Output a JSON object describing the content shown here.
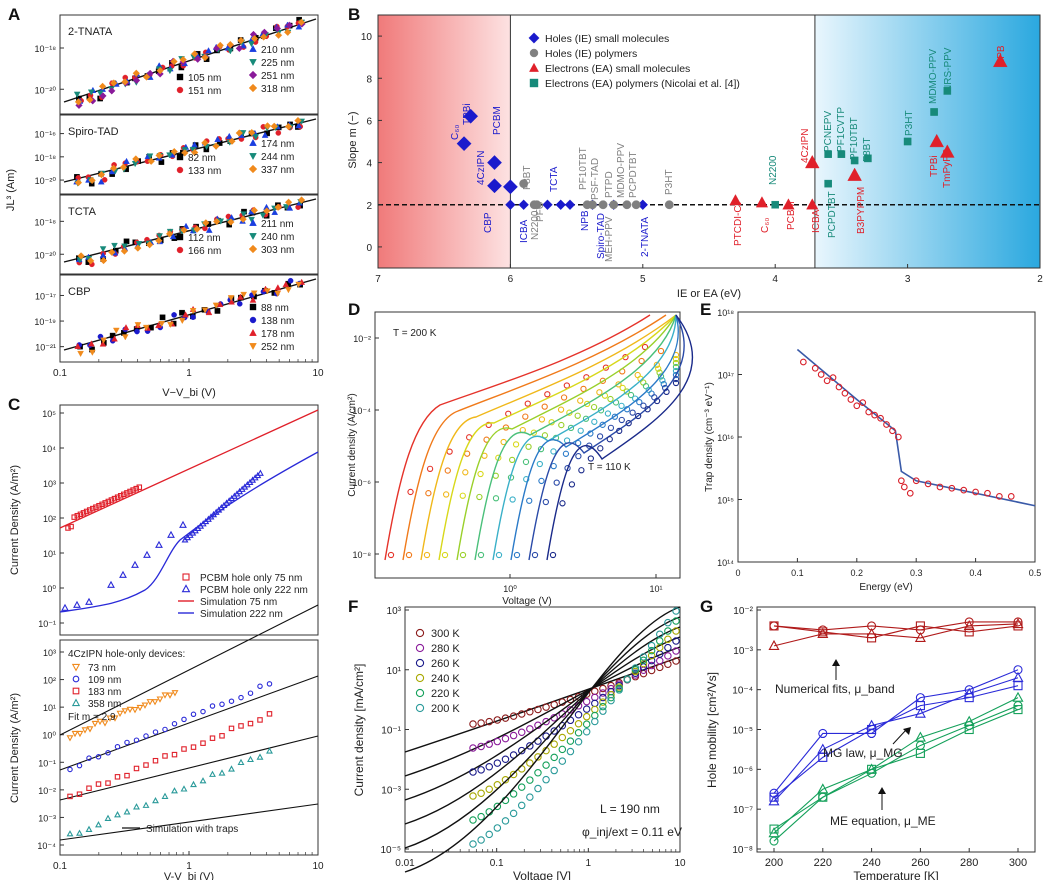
{
  "panels": {
    "A": "A",
    "B": "B",
    "C": "C",
    "D": "D",
    "E": "E",
    "F": "F",
    "G": "G"
  },
  "colors": {
    "blue": "#1a1acc",
    "red": "#e0202a",
    "teal": "#178a7a",
    "gray": "#808080",
    "orange": "#f08a1c",
    "purple": "#8a1a9a",
    "green": "#14a05a",
    "darkred": "#8b1a1a",
    "navy": "#1a1a8a",
    "olive": "#a8a800",
    "teal2": "#2a9a9a"
  },
  "chart_data": [
    {
      "id": "A",
      "type": "scatter",
      "ylabel": "JL³ (Am)",
      "xlabel": "V−V_bi (V)",
      "xlim": [
        0.1,
        10
      ],
      "xticks": [
        "0.1",
        "1",
        "10"
      ],
      "subplots": [
        {
          "name": "2-TNATA",
          "yticks": [
            "10⁻¹⁸",
            "10⁻²⁰"
          ],
          "legend": [
            {
              "label": "105 nm",
              "color": "#000000",
              "marker": "square"
            },
            {
              "label": "151 nm",
              "color": "#e0202a",
              "marker": "circle"
            },
            {
              "label": "210 nm",
              "color": "#1a3ee0",
              "marker": "triangle-up"
            },
            {
              "label": "225 nm",
              "color": "#178a7a",
              "marker": "triangle-down"
            },
            {
              "label": "251 nm",
              "color": "#8a1a9a",
              "marker": "diamond"
            },
            {
              "label": "318 nm",
              "color": "#f08a1c",
              "marker": "diamond"
            }
          ]
        },
        {
          "name": "Spiro-TAD",
          "yticks": [
            "10⁻¹⁶",
            "10⁻¹⁸",
            "10⁻²⁰"
          ],
          "legend": [
            {
              "label": "82 nm",
              "color": "#000000",
              "marker": "square"
            },
            {
              "label": "133 nm",
              "color": "#e0202a",
              "marker": "circle"
            },
            {
              "label": "174 nm",
              "color": "#1a3ee0",
              "marker": "triangle-up"
            },
            {
              "label": "244 nm",
              "color": "#178a7a",
              "marker": "triangle-down"
            },
            {
              "label": "337 nm",
              "color": "#f08a1c",
              "marker": "diamond"
            }
          ]
        },
        {
          "name": "TCTA",
          "yticks": [
            "10⁻¹⁸",
            "10⁻²⁰"
          ],
          "legend": [
            {
              "label": "112 nm",
              "color": "#000000",
              "marker": "square"
            },
            {
              "label": "166 nm",
              "color": "#e0202a",
              "marker": "circle"
            },
            {
              "label": "211 nm",
              "color": "#1a3ee0",
              "marker": "triangle-up"
            },
            {
              "label": "240 nm",
              "color": "#178a7a",
              "marker": "triangle-down"
            },
            {
              "label": "303 nm",
              "color": "#f08a1c",
              "marker": "diamond"
            }
          ]
        },
        {
          "name": "CBP",
          "yticks": [
            "10⁻¹⁷",
            "10⁻¹⁹",
            "10⁻²¹"
          ],
          "legend": [
            {
              "label": "88 nm",
              "color": "#000000",
              "marker": "square"
            },
            {
              "label": "138 nm",
              "color": "#1a1acc",
              "marker": "circle"
            },
            {
              "label": "178 nm",
              "color": "#e0202a",
              "marker": "triangle-up"
            },
            {
              "label": "252 nm",
              "color": "#f08a1c",
              "marker": "triangle-down"
            }
          ]
        }
      ]
    },
    {
      "id": "B",
      "type": "scatter",
      "xlabel": "IE or EA (eV)",
      "ylabel": "Slope m (−)",
      "xlim": [
        7,
        2
      ],
      "ylim": [
        -1,
        11
      ],
      "xticks": [
        "7",
        "6",
        "5",
        "4",
        "3",
        "2"
      ],
      "yticks": [
        "0",
        "2",
        "4",
        "6",
        "8",
        "10"
      ],
      "legend": [
        "Holes (IE) small molecules",
        "Holes (IE) polymers",
        "Electrons (EA) small molecules",
        "Electrons (EA) polymers (Nicolai et al. [4])"
      ],
      "series": [
        {
          "name": "holes-small",
          "color": "#1a1acc",
          "marker": "diamond",
          "points": [
            {
              "x": 6.35,
              "y": 4.9,
              "label": "C₆₀"
            },
            {
              "x": 6.3,
              "y": 6.2,
              "label": "TPBi"
            },
            {
              "x": 6.12,
              "y": 4.0,
              "label": "PCBM"
            },
            {
              "x": 6.12,
              "y": 2.9,
              "label": "4CzIPN"
            },
            {
              "x": 6.0,
              "y": 2.85,
              "label": "CBP"
            },
            {
              "x": 5.9,
              "y": 2.0,
              "label": "ICBA"
            },
            {
              "x": 5.72,
              "y": 2.0,
              "label": "TCTA"
            },
            {
              "x": 5.55,
              "y": 2.0,
              "label": "NPB"
            },
            {
              "x": 5.38,
              "y": 2.0,
              "label": "Spiro-TAD"
            },
            {
              "x": 5.0,
              "y": 2.0,
              "label": "2-TNATA"
            },
            {
              "x": 6.0,
              "y": 2.0,
              "label": ""
            },
            {
              "x": 5.62,
              "y": 2.0,
              "label": ""
            },
            {
              "x": 5.22,
              "y": 2.0,
              "label": ""
            }
          ]
        },
        {
          "name": "holes-polymers",
          "color": "#808080",
          "marker": "circle",
          "points": [
            {
              "x": 5.9,
              "y": 3.0,
              "label": "F8BT"
            },
            {
              "x": 5.82,
              "y": 2.0,
              "label": "PFO"
            },
            {
              "x": 5.8,
              "y": 2.0,
              "label": "N2200"
            },
            {
              "x": 5.42,
              "y": 2.0,
              "label": "PF10TBT"
            },
            {
              "x": 5.38,
              "y": 2.0,
              "label": "PSF-TAD"
            },
            {
              "x": 5.3,
              "y": 2.0,
              "label": "MEH-PPV"
            },
            {
              "x": 5.22,
              "y": 2.0,
              "label": "PTPD"
            },
            {
              "x": 5.12,
              "y": 2.0,
              "label": "MDMO-PPV"
            },
            {
              "x": 5.05,
              "y": 2.0,
              "label": "PCPDTBT"
            },
            {
              "x": 4.8,
              "y": 2.0,
              "label": "P3HT"
            }
          ]
        },
        {
          "name": "electrons-small",
          "color": "#e0202a",
          "marker": "triangle",
          "points": [
            {
              "x": 4.3,
              "y": 2.2,
              "label": "PTCDI-C7"
            },
            {
              "x": 4.1,
              "y": 2.1,
              "label": "C₆₀"
            },
            {
              "x": 3.9,
              "y": 2.0,
              "label": "PCBM"
            },
            {
              "x": 3.72,
              "y": 4.0,
              "label": "4CzIPN"
            },
            {
              "x": 3.72,
              "y": 2.0,
              "label": "ICBA"
            },
            {
              "x": 3.4,
              "y": 3.4,
              "label": "B3PYPPM"
            },
            {
              "x": 2.78,
              "y": 5.0,
              "label": "TPBi"
            },
            {
              "x": 2.7,
              "y": 4.5,
              "label": "TmPyPB"
            },
            {
              "x": 2.3,
              "y": 8.8,
              "label": "NPB"
            }
          ]
        },
        {
          "name": "electrons-polymers",
          "color": "#178a7a",
          "marker": "square",
          "points": [
            {
              "x": 4.0,
              "y": 2.0,
              "label": "N2200"
            },
            {
              "x": 3.6,
              "y": 3.0,
              "label": "PCPDTBT"
            },
            {
              "x": 3.6,
              "y": 4.4,
              "label": "PCNEPV"
            },
            {
              "x": 3.5,
              "y": 4.4,
              "label": "PF1CVTP"
            },
            {
              "x": 3.4,
              "y": 4.1,
              "label": "PF10TBT"
            },
            {
              "x": 3.3,
              "y": 4.2,
              "label": "F8BT"
            },
            {
              "x": 3.0,
              "y": 5.0,
              "label": "P3HT"
            },
            {
              "x": 2.8,
              "y": 6.4,
              "label": "MDMO-PPV"
            },
            {
              "x": 2.7,
              "y": 7.4,
              "label": "NRS-PPV"
            }
          ]
        }
      ]
    },
    {
      "id": "C",
      "type": "scatter",
      "xlabel": "V-V_bi (V)",
      "ylabel": "Current Density (A/m²)",
      "top": {
        "yticks": [
          "10⁵",
          "10⁴",
          "10³",
          "10²",
          "10¹",
          "10⁰",
          "10⁻¹"
        ],
        "legend": [
          "PCBM hole only 75 nm",
          "PCBM hole only 222 nm",
          "Simulation 75 nm",
          "Simulation 222 nm"
        ]
      },
      "bottom": {
        "yticks": [
          "10³",
          "10²",
          "10¹",
          "10⁰",
          "10⁻¹",
          "10⁻²",
          "10⁻³",
          "10⁻⁴"
        ],
        "xticks": [
          "0.1",
          "1",
          "10"
        ],
        "legend_title": "4CzIPN hole-only devices:",
        "legend": [
          "73 nm",
          "109 nm",
          "183 nm",
          "358 nm"
        ],
        "fit": "Fit m = 2.9",
        "sim": "Simulation with traps"
      }
    },
    {
      "id": "D",
      "type": "line",
      "xlabel": "Voltage (V)",
      "ylabel": "Current density (A/cm²)",
      "yticks": [
        "10⁻²",
        "10⁻⁴",
        "10⁻⁶",
        "10⁻⁸"
      ],
      "xticks": [
        "10⁰",
        "10¹"
      ],
      "annotations": [
        "T = 200 K",
        "T = 110 K"
      ],
      "series_temps_K": [
        200,
        190,
        180,
        170,
        160,
        150,
        140,
        130,
        120,
        110
      ]
    },
    {
      "id": "E",
      "type": "scatter",
      "xlabel": "Energy (eV)",
      "ylabel": "Trap density (cm⁻³ eV⁻¹)",
      "xlim": [
        0,
        0.5
      ],
      "xticks": [
        "0",
        "0.1",
        "0.2",
        "0.3",
        "0.4",
        "0.5"
      ],
      "yticks": [
        "10¹⁸",
        "10¹⁷",
        "10¹⁶",
        "10¹⁵",
        "10¹⁴"
      ],
      "points_energy_eV": [
        0.11,
        0.13,
        0.14,
        0.15,
        0.16,
        0.17,
        0.18,
        0.19,
        0.2,
        0.21,
        0.22,
        0.23,
        0.24,
        0.25,
        0.26,
        0.27,
        0.275,
        0.28,
        0.29,
        0.3,
        0.32,
        0.34,
        0.36,
        0.38,
        0.4,
        0.42,
        0.44,
        0.46
      ],
      "points_log10_density": [
        17.2,
        17.1,
        17.0,
        16.9,
        16.95,
        16.8,
        16.7,
        16.6,
        16.5,
        16.55,
        16.4,
        16.35,
        16.3,
        16.2,
        16.1,
        16.0,
        15.3,
        15.2,
        15.1,
        15.3,
        15.25,
        15.2,
        15.18,
        15.15,
        15.12,
        15.1,
        15.05,
        15.05
      ]
    },
    {
      "id": "F",
      "type": "line",
      "xlabel": "Voltage [V]",
      "ylabel": "Current density [mA/cm²]",
      "xticks": [
        "0.01",
        "0.1",
        "1",
        "10"
      ],
      "yticks": [
        "10³",
        "10¹",
        "10⁻¹",
        "10⁻³",
        "10⁻⁵"
      ],
      "legend": [
        {
          "label": "300 K",
          "color": "#8b1a1a"
        },
        {
          "label": "280 K",
          "color": "#8a1a9a"
        },
        {
          "label": "260 K",
          "color": "#1a1a8a"
        },
        {
          "label": "240 K",
          "color": "#a8a800"
        },
        {
          "label": "220 K",
          "color": "#14a05a"
        },
        {
          "label": "200 K",
          "color": "#2a9a9a"
        }
      ],
      "annotations": [
        "L = 190 nm",
        "φ_inj/ext = 0.11 eV"
      ]
    },
    {
      "id": "G",
      "type": "line",
      "xlabel": "Temperature [K]",
      "ylabel": "Hole mobility [cm²/Vs]",
      "xticks": [
        "200",
        "220",
        "240",
        "260",
        "280",
        "300"
      ],
      "yticks": [
        "10⁻²",
        "10⁻³",
        "10⁻⁴",
        "10⁻⁵",
        "10⁻⁶",
        "10⁻⁷",
        "10⁻⁸"
      ],
      "temperatures": [
        200,
        220,
        240,
        260,
        280,
        300
      ],
      "band_log10": [
        [
          -2.4,
          -2.5,
          -2.4,
          -2.5,
          -2.3,
          -2.3
        ],
        [
          -2.9,
          -2.6,
          -2.6,
          -2.7,
          -2.4,
          -2.35
        ],
        [
          -2.4,
          -2.55,
          -2.7,
          -2.4,
          -2.55,
          -2.4
        ]
      ],
      "mg_log10": [
        [
          -6.6,
          -5.1,
          -5.1,
          -4.2,
          -4.0,
          -3.5
        ],
        [
          -6.8,
          -5.5,
          -4.9,
          -4.6,
          -4.1,
          -3.7
        ],
        [
          -6.7,
          -5.7,
          -5.0,
          -4.4,
          -4.2,
          -3.9
        ]
      ],
      "me_log10": [
        [
          -7.8,
          -6.7,
          -6.1,
          -5.4,
          -4.9,
          -4.4
        ],
        [
          -7.6,
          -6.5,
          -6.0,
          -5.2,
          -4.8,
          -4.2
        ],
        [
          -7.5,
          -6.7,
          -6.0,
          -5.6,
          -5.0,
          -4.5
        ]
      ],
      "annotations": [
        "Numerical fits, μ_band",
        "MG law, μ_MG",
        "ME equation, μ_ME"
      ]
    }
  ]
}
